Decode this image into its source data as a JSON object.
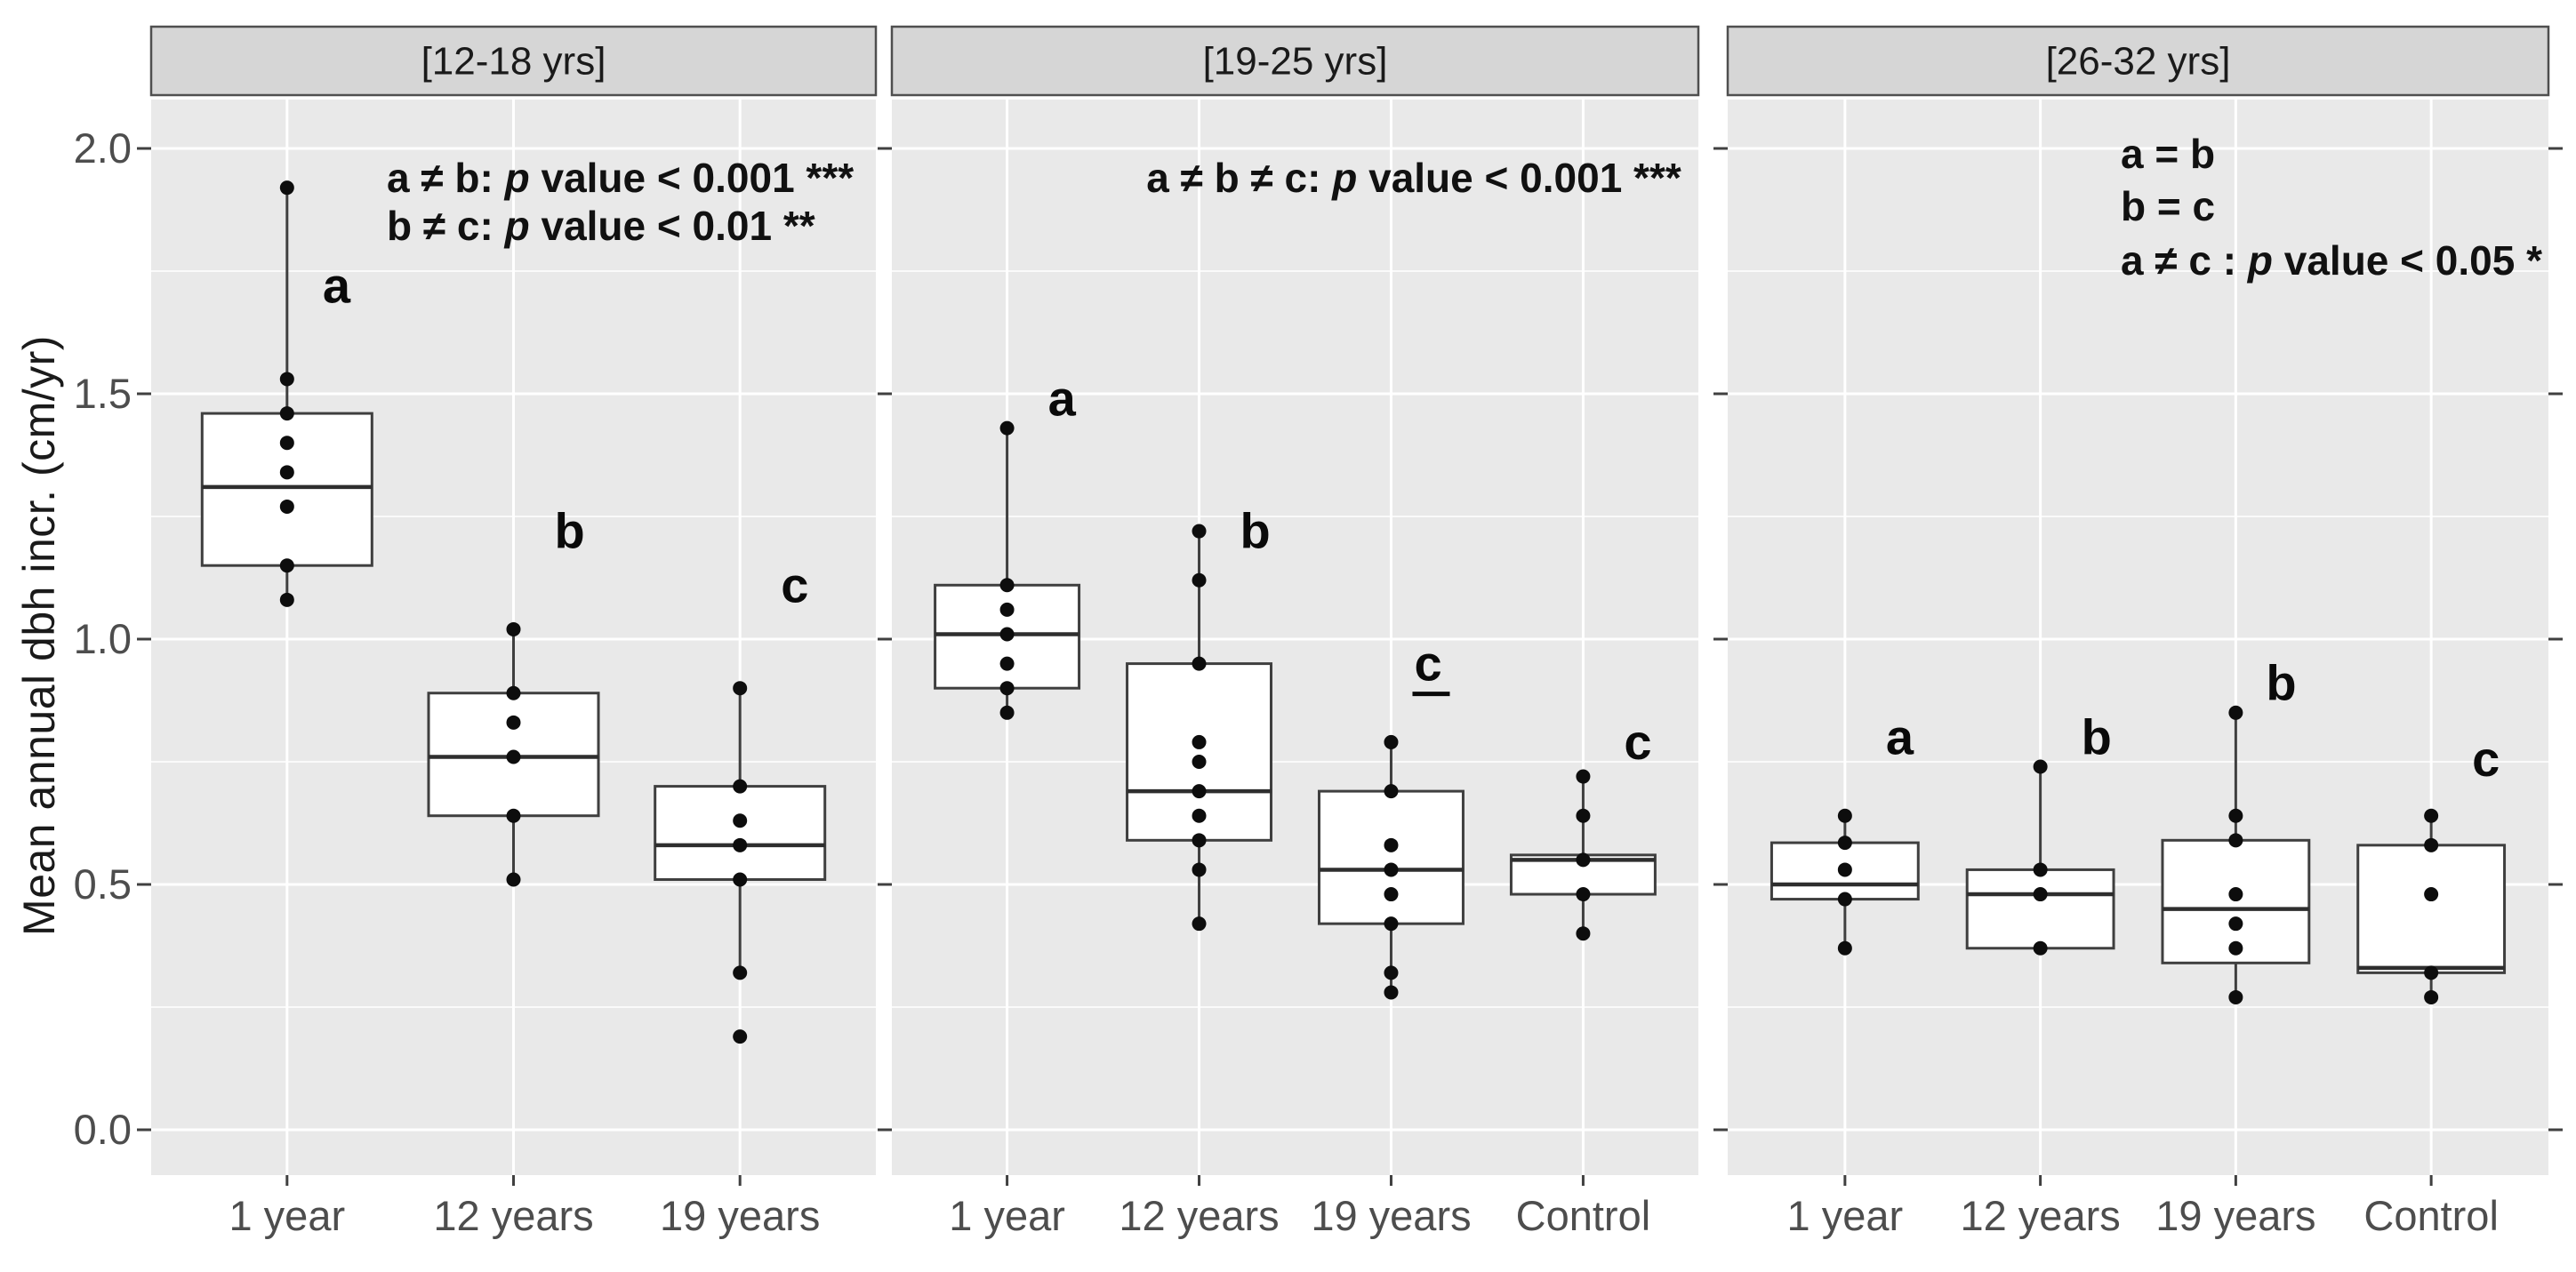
{
  "chart_data": {
    "type": "boxplot",
    "title": "",
    "ylabel": "Mean annual dbh incr. (cm/yr)",
    "xlabel": "",
    "ylim": [
      -0.1,
      2.1
    ],
    "yticks": [
      0.0,
      0.5,
      1.0,
      1.5,
      2.0
    ],
    "ytick_labels": [
      "0.0",
      "0.5",
      "1.0",
      "1.5",
      "2.0"
    ],
    "grid": "white major+minor on grey panel",
    "legend_position": "none",
    "colors": {
      "background": "#ffffff",
      "panel_background": "#e9e9e9",
      "strip_background": "#d6d6d6",
      "strip_border": "#4f4f4f",
      "gridline": "#ffffff",
      "box_fill": "#ffffff",
      "box_stroke": "#3f3f3f",
      "point": "#0d0d0d",
      "axis_text": "#4d4d4d",
      "annotation_text": "#111111"
    },
    "panels": [
      {
        "strip": "[12-18 yrs]",
        "annotation_lines": [
          "a ≠ b: p value < 0.001 ***",
          "b ≠ c: p value < 0.01 **"
        ],
        "groups": [
          {
            "category": "1 year",
            "letter": "a",
            "letter_v": 1.72,
            "whisker_low": 1.08,
            "q1": 1.15,
            "median": 1.31,
            "q3": 1.46,
            "whisker_high": 1.92,
            "points": [
              1.92,
              1.53,
              1.46,
              1.4,
              1.34,
              1.27,
              1.15,
              1.08
            ]
          },
          {
            "category": "12 years",
            "letter": "b",
            "letter_v": 1.22,
            "whisker_low": 0.51,
            "q1": 0.64,
            "median": 0.76,
            "q3": 0.89,
            "whisker_high": 1.02,
            "points": [
              1.02,
              0.89,
              0.83,
              0.76,
              0.64,
              0.51
            ]
          },
          {
            "category": "19 years",
            "letter": "c",
            "letter_v": 1.11,
            "whisker_low": 0.32,
            "q1": 0.51,
            "median": 0.58,
            "q3": 0.7,
            "whisker_high": 0.9,
            "points": [
              0.9,
              0.7,
              0.63,
              0.58,
              0.51,
              0.32,
              0.19
            ]
          }
        ]
      },
      {
        "strip": "[19-25 yrs]",
        "annotation_lines": [
          "a ≠ b ≠ c: p value < 0.001 ***"
        ],
        "groups": [
          {
            "category": "1 year",
            "letter": "a",
            "letter_v": 1.49,
            "whisker_low": 0.85,
            "q1": 0.9,
            "median": 1.01,
            "q3": 1.11,
            "whisker_high": 1.43,
            "points": [
              1.43,
              1.11,
              1.06,
              1.01,
              0.95,
              0.9,
              0.85
            ]
          },
          {
            "category": "12 years",
            "letter": "b",
            "letter_v": 1.22,
            "whisker_low": 0.42,
            "q1": 0.59,
            "median": 0.69,
            "q3": 0.95,
            "whisker_high": 1.22,
            "points": [
              1.22,
              1.12,
              0.95,
              0.79,
              0.75,
              0.69,
              0.64,
              0.59,
              0.53,
              0.42
            ]
          },
          {
            "category": "19 years",
            "letter": "c",
            "letter_v": 0.95,
            "letter_underline": true,
            "whisker_low": 0.28,
            "q1": 0.42,
            "median": 0.53,
            "q3": 0.69,
            "whisker_high": 0.79,
            "points": [
              0.79,
              0.69,
              0.58,
              0.53,
              0.48,
              0.42,
              0.32,
              0.28
            ]
          },
          {
            "category": "Control",
            "letter": "c",
            "letter_v": 0.79,
            "whisker_low": 0.4,
            "q1": 0.48,
            "median": 0.55,
            "q3": 0.56,
            "whisker_high": 0.72,
            "points": [
              0.72,
              0.64,
              0.55,
              0.48,
              0.4
            ]
          }
        ]
      },
      {
        "strip": "[26-32 yrs]",
        "annotation_lines": [
          "a = b",
          "b = c",
          "a ≠ c : p value < 0.05 *"
        ],
        "groups": [
          {
            "category": "1 year",
            "letter": "a",
            "letter_v": 0.8,
            "whisker_low": 0.37,
            "q1": 0.47,
            "median": 0.5,
            "q3": 0.585,
            "whisker_high": 0.64,
            "points": [
              0.64,
              0.585,
              0.53,
              0.47,
              0.37
            ]
          },
          {
            "category": "12 years",
            "letter": "b",
            "letter_v": 0.8,
            "whisker_low": 0.37,
            "q1": 0.37,
            "median": 0.48,
            "q3": 0.53,
            "whisker_high": 0.74,
            "points": [
              0.74,
              0.53,
              0.48,
              0.37
            ]
          },
          {
            "category": "19 years",
            "letter": "b",
            "letter_v": 0.91,
            "whisker_low": 0.27,
            "q1": 0.34,
            "median": 0.45,
            "q3": 0.59,
            "whisker_high": 0.85,
            "points": [
              0.85,
              0.64,
              0.59,
              0.48,
              0.42,
              0.37,
              0.27
            ]
          },
          {
            "category": "Control",
            "letter": "c",
            "letter_v": 0.755,
            "whisker_low": 0.27,
            "q1": 0.32,
            "median": 0.33,
            "q3": 0.58,
            "whisker_high": 0.64,
            "points": [
              0.64,
              0.58,
              0.48,
              0.32,
              0.27
            ]
          }
        ]
      }
    ]
  }
}
